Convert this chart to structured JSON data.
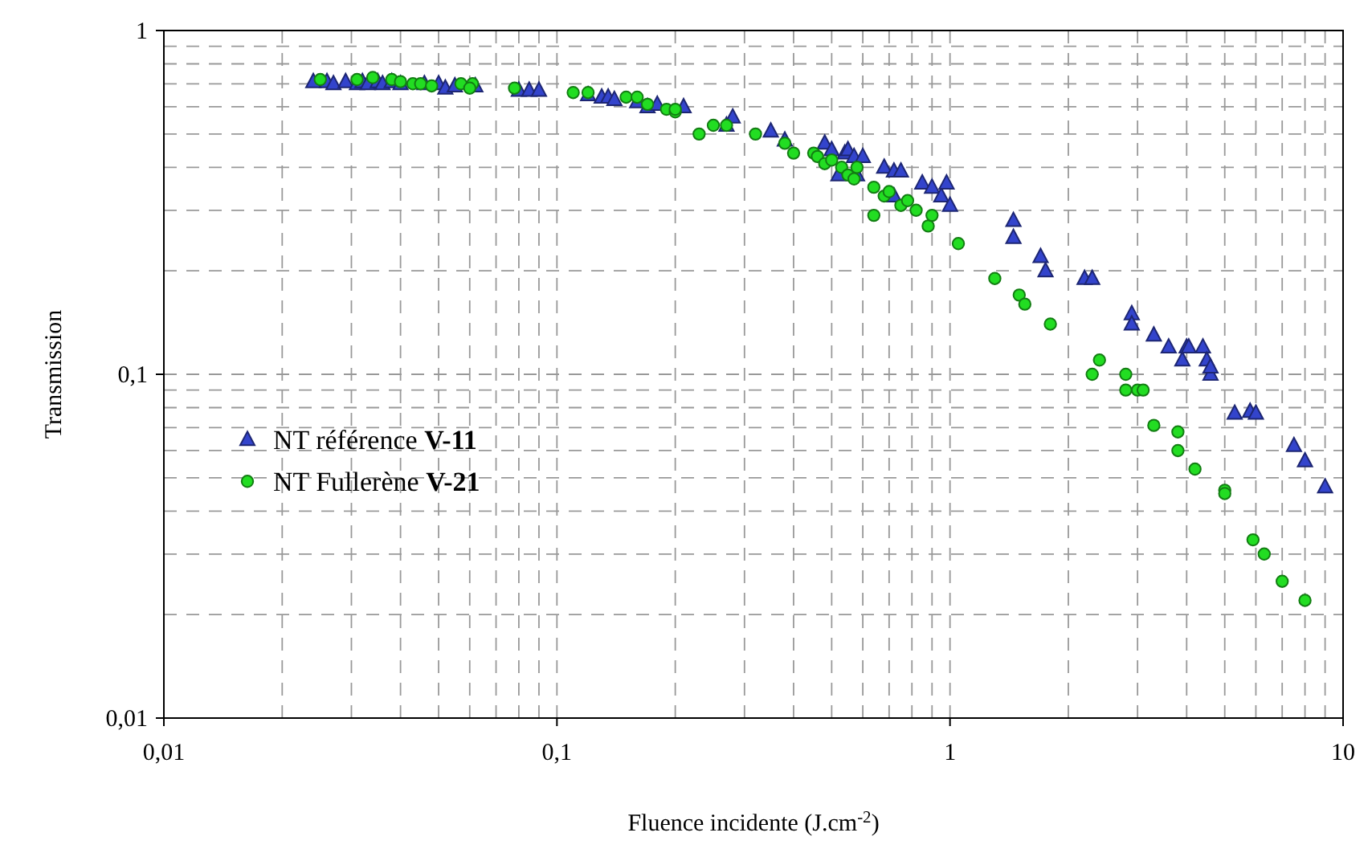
{
  "chart_data": {
    "type": "scatter",
    "xlabel": "Fluence incidente (J.cm$^{-2}$)",
    "ylabel": "Transmission",
    "log": "xy",
    "grid": true,
    "legend": "left",
    "xlim": [
      0.01,
      10
    ],
    "ylim": [
      0.01,
      1
    ],
    "xticks": [
      {
        "value": 0.01,
        "label": "0,01"
      },
      {
        "value": 0.02,
        "label": null
      },
      {
        "value": 0.03,
        "label": null
      },
      {
        "value": 0.04,
        "label": null
      },
      {
        "value": 0.05,
        "label": null
      },
      {
        "value": 0.06,
        "label": null
      },
      {
        "value": 0.07,
        "label": null
      },
      {
        "value": 0.08,
        "label": null
      },
      {
        "value": 0.09,
        "label": null
      },
      {
        "value": 0.1,
        "label": "0,1"
      },
      {
        "value": 0.2,
        "label": null
      },
      {
        "value": 0.3,
        "label": null
      },
      {
        "value": 0.4,
        "label": null
      },
      {
        "value": 0.5,
        "label": null
      },
      {
        "value": 0.6,
        "label": null
      },
      {
        "value": 0.7,
        "label": null
      },
      {
        "value": 0.8,
        "label": null
      },
      {
        "value": 0.9,
        "label": null
      },
      {
        "value": 1,
        "label": "1"
      },
      {
        "value": 2,
        "label": null
      },
      {
        "value": 3,
        "label": null
      },
      {
        "value": 4,
        "label": null
      },
      {
        "value": 5,
        "label": null
      },
      {
        "value": 6,
        "label": null
      },
      {
        "value": 7,
        "label": null
      },
      {
        "value": 8,
        "label": null
      },
      {
        "value": 9,
        "label": null
      },
      {
        "value": 10,
        "label": "10"
      }
    ],
    "yticks": [
      {
        "value": 0.01,
        "label": "0,01"
      },
      {
        "value": 0.02,
        "label": null
      },
      {
        "value": 0.03,
        "label": null
      },
      {
        "value": 0.04,
        "label": null
      },
      {
        "value": 0.05,
        "label": null
      },
      {
        "value": 0.06,
        "label": null
      },
      {
        "value": 0.07,
        "label": null
      },
      {
        "value": 0.08,
        "label": null
      },
      {
        "value": 0.09,
        "label": null
      },
      {
        "value": 0.1,
        "label": "0,1"
      },
      {
        "value": 0.2,
        "label": null
      },
      {
        "value": 0.3,
        "label": null
      },
      {
        "value": 0.4,
        "label": null
      },
      {
        "value": 0.5,
        "label": null
      },
      {
        "value": 0.6,
        "label": null
      },
      {
        "value": 0.7,
        "label": null
      },
      {
        "value": 0.8,
        "label": null
      },
      {
        "value": 0.9,
        "label": null
      },
      {
        "value": 1,
        "label": "1"
      }
    ],
    "series": [
      {
        "name": "NT référence V-11",
        "color": "#3344cc",
        "marker": "triangle",
        "x": [
          0.024,
          0.026,
          0.027,
          0.029,
          0.031,
          0.032,
          0.033,
          0.035,
          0.036,
          0.038,
          0.04,
          0.046,
          0.05,
          0.052,
          0.055,
          0.062,
          0.08,
          0.085,
          0.09,
          0.12,
          0.13,
          0.135,
          0.14,
          0.16,
          0.17,
          0.18,
          0.21,
          0.28,
          0.27,
          0.35,
          0.38,
          0.48,
          0.5,
          0.54,
          0.55,
          0.57,
          0.6,
          0.52,
          0.58,
          0.68,
          0.72,
          0.75,
          0.85,
          0.9,
          0.95,
          0.98,
          1.0,
          0.72,
          1.45,
          1.45,
          1.7,
          1.75,
          2.2,
          2.3,
          2.9,
          2.9,
          3.3,
          3.6,
          4.0,
          4.05,
          3.9,
          4.4,
          4.5,
          4.6,
          4.6,
          5.3,
          5.8,
          6.0,
          7.5,
          8.0,
          9.0
        ],
        "values": [
          0.71,
          0.71,
          0.7,
          0.71,
          0.7,
          0.71,
          0.7,
          0.71,
          0.7,
          0.71,
          0.7,
          0.7,
          0.7,
          0.68,
          0.69,
          0.69,
          0.67,
          0.67,
          0.67,
          0.65,
          0.64,
          0.64,
          0.63,
          0.62,
          0.6,
          0.61,
          0.6,
          0.56,
          0.53,
          0.51,
          0.48,
          0.47,
          0.45,
          0.44,
          0.45,
          0.43,
          0.43,
          0.38,
          0.38,
          0.4,
          0.39,
          0.39,
          0.36,
          0.35,
          0.33,
          0.36,
          0.31,
          0.33,
          0.28,
          0.25,
          0.22,
          0.2,
          0.19,
          0.19,
          0.15,
          0.14,
          0.13,
          0.12,
          0.12,
          0.12,
          0.11,
          0.12,
          0.11,
          0.1,
          0.105,
          0.077,
          0.078,
          0.077,
          0.062,
          0.056,
          0.047
        ]
      },
      {
        "name": "NT Fullerène V-21",
        "color": "#22dd22",
        "marker": "circle",
        "x": [
          0.025,
          0.031,
          0.034,
          0.038,
          0.04,
          0.043,
          0.045,
          0.048,
          0.057,
          0.061,
          0.06,
          0.078,
          0.11,
          0.12,
          0.15,
          0.16,
          0.17,
          0.19,
          0.2,
          0.2,
          0.23,
          0.25,
          0.27,
          0.32,
          0.38,
          0.4,
          0.45,
          0.46,
          0.48,
          0.5,
          0.53,
          0.55,
          0.57,
          0.58,
          0.64,
          0.68,
          0.7,
          0.75,
          0.78,
          0.64,
          0.82,
          0.88,
          0.9,
          1.05,
          1.3,
          1.5,
          1.55,
          1.8,
          2.3,
          2.4,
          2.8,
          2.8,
          3.0,
          3.1,
          3.3,
          3.8,
          3.8,
          4.2,
          5.0,
          5.0,
          5.9,
          6.3,
          7.0,
          8.0
        ],
        "values": [
          0.72,
          0.72,
          0.73,
          0.72,
          0.71,
          0.7,
          0.7,
          0.69,
          0.7,
          0.7,
          0.68,
          0.68,
          0.66,
          0.66,
          0.64,
          0.64,
          0.61,
          0.59,
          0.58,
          0.59,
          0.5,
          0.53,
          0.53,
          0.5,
          0.47,
          0.44,
          0.44,
          0.43,
          0.41,
          0.42,
          0.4,
          0.38,
          0.37,
          0.4,
          0.35,
          0.33,
          0.34,
          0.31,
          0.32,
          0.29,
          0.3,
          0.27,
          0.29,
          0.24,
          0.19,
          0.17,
          0.16,
          0.14,
          0.1,
          0.11,
          0.1,
          0.09,
          0.09,
          0.09,
          0.071,
          0.068,
          0.06,
          0.053,
          0.046,
          0.045,
          0.033,
          0.03,
          0.025,
          0.022
        ]
      }
    ]
  }
}
